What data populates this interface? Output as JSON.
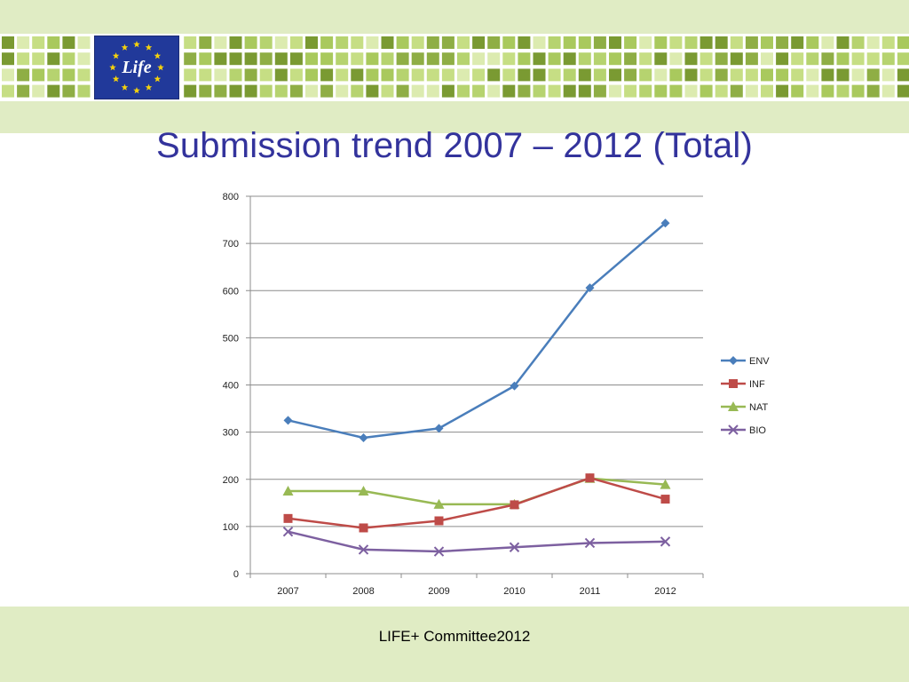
{
  "slide": {
    "title": "Submission trend 2007 – 2012 (Total)",
    "footer": "LIFE+ Committee2012",
    "logo_text": "Life",
    "colors": {
      "band": "#e0ecc4",
      "title": "#33339c",
      "logo_bg": "#21399a",
      "logo_star": "#f5d20c"
    }
  },
  "chart_data": {
    "type": "line",
    "title": "",
    "xlabel": "",
    "ylabel": "",
    "categories": [
      "2007",
      "2008",
      "2009",
      "2010",
      "2011",
      "2012"
    ],
    "ylim": [
      0,
      800
    ],
    "yticks": [
      0,
      100,
      200,
      300,
      400,
      500,
      600,
      700,
      800
    ],
    "grid": true,
    "legend_position": "right",
    "series": [
      {
        "name": "ENV",
        "color": "#4a7ebb",
        "marker": "diamond",
        "values": [
          325,
          288,
          308,
          398,
          606,
          743
        ]
      },
      {
        "name": "INF",
        "color": "#be4b48",
        "marker": "square",
        "values": [
          117,
          97,
          112,
          146,
          203,
          158
        ]
      },
      {
        "name": "NAT",
        "color": "#98b954",
        "marker": "triangle",
        "values": [
          175,
          175,
          147,
          147,
          202,
          189
        ]
      },
      {
        "name": "BIO",
        "color": "#7d60a0",
        "marker": "x",
        "values": [
          89,
          51,
          47,
          56,
          65,
          68
        ]
      }
    ]
  }
}
